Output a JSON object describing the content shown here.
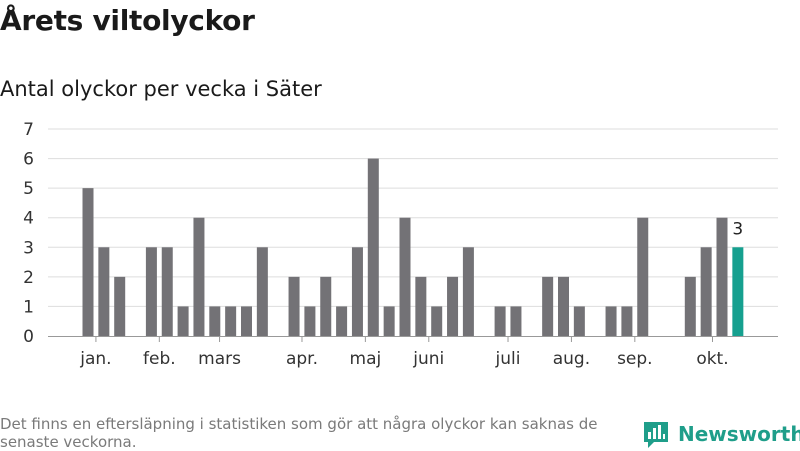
{
  "header": {
    "title": "Årets viltolyckor",
    "subtitle": "Antal olyckor per vecka i Säter"
  },
  "footer": {
    "note": "Det finns en eftersläpning i statistiken som gör att några olyckor kan saknas de senaste veckorna.",
    "brand": "Newsworthy"
  },
  "colors": {
    "bar": "#737276",
    "highlight": "#16a08f",
    "grid": "#dddddd",
    "axis": "#999999",
    "brand": "#1f9e8a"
  },
  "chart_data": {
    "type": "bar",
    "title": "Antal olyckor per vecka i Säter",
    "xlabel": "",
    "ylabel": "",
    "ylim": [
      0,
      7
    ],
    "yticks": [
      0,
      1,
      2,
      3,
      4,
      5,
      6,
      7
    ],
    "grid": true,
    "x": [
      1,
      2,
      3,
      4,
      5,
      6,
      7,
      8,
      9,
      10,
      11,
      12,
      13,
      14,
      15,
      16,
      17,
      18,
      19,
      20,
      21,
      22,
      23,
      24,
      25,
      26,
      27,
      28,
      29,
      30,
      31,
      32,
      33,
      34,
      35,
      36,
      37,
      38,
      39,
      40,
      41,
      42
    ],
    "values": [
      5,
      3,
      2,
      0,
      3,
      3,
      1,
      4,
      1,
      1,
      1,
      3,
      0,
      2,
      1,
      2,
      1,
      3,
      6,
      1,
      4,
      2,
      1,
      2,
      3,
      0,
      1,
      1,
      0,
      2,
      2,
      1,
      0,
      1,
      1,
      4,
      0,
      0,
      2,
      3,
      4,
      3
    ],
    "month_ticks": [
      {
        "label": "jan.",
        "x": 1.5
      },
      {
        "label": "feb.",
        "x": 5.5
      },
      {
        "label": "mars",
        "x": 9.3
      },
      {
        "label": "apr.",
        "x": 14.5
      },
      {
        "label": "maj",
        "x": 18.5
      },
      {
        "label": "juni",
        "x": 22.5
      },
      {
        "label": "juli",
        "x": 27.5
      },
      {
        "label": "aug.",
        "x": 31.5
      },
      {
        "label": "sep.",
        "x": 35.5
      },
      {
        "label": "okt.",
        "x": 40.4
      }
    ],
    "highlight": {
      "x": 42,
      "value": 3,
      "label": "3"
    }
  }
}
